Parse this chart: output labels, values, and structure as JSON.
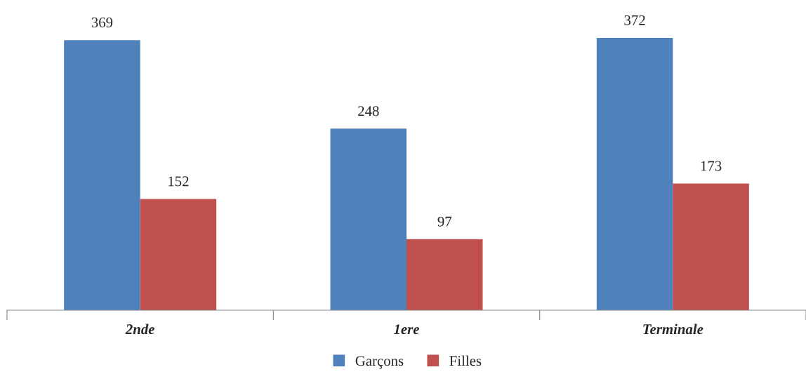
{
  "chart_data": {
    "type": "bar",
    "categories": [
      "2nde",
      "1ere",
      "Terminale"
    ],
    "series": [
      {
        "name": "Garçons",
        "color": "#4f81bd",
        "values": [
          369,
          248,
          372
        ]
      },
      {
        "name": "Filles",
        "color": "#c0504d",
        "values": [
          152,
          97,
          173
        ]
      }
    ],
    "data_labels": true,
    "legend": "bottom",
    "grid": false,
    "tick_labels": "x"
  }
}
